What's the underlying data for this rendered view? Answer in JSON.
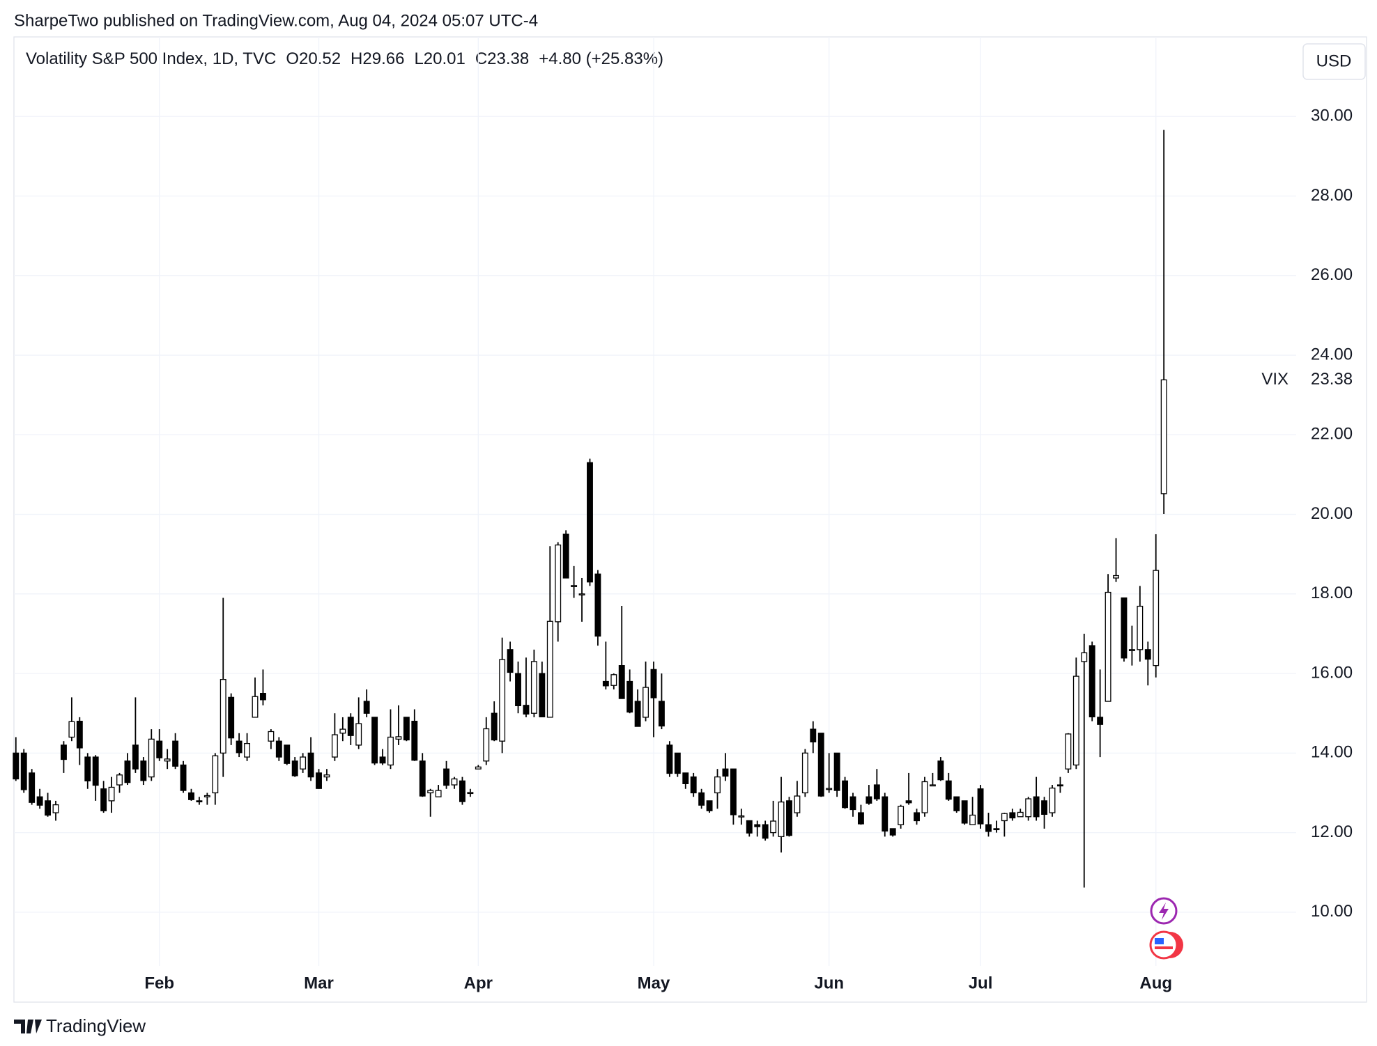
{
  "header": {
    "title": "SharpeTwo published on TradingView.com, Aug 04, 2024 05:07 UTC-4"
  },
  "footer": {
    "brand": "TradingView"
  },
  "chart_data": {
    "type": "candlestick",
    "symbol": "Volatility S&P 500 Index, 1D, TVC",
    "ohlc_labels": [
      "O20.52",
      "H29.66",
      "L20.01",
      "C23.38"
    ],
    "change": "+4.80 (+25.83%)",
    "currency": "USD",
    "ylim": [
      8.65,
      32.0
    ],
    "yticks": [
      {
        "value": 10,
        "label": "10.00"
      },
      {
        "value": 12,
        "label": "12.00"
      },
      {
        "value": 14,
        "label": "14.00"
      },
      {
        "value": 16,
        "label": "16.00"
      },
      {
        "value": 18,
        "label": "18.00"
      },
      {
        "value": 20,
        "label": "20.00"
      },
      {
        "value": 22,
        "label": "22.00"
      },
      {
        "value": 24,
        "label": "24.00"
      },
      {
        "value": 26,
        "label": "26.00"
      },
      {
        "value": 28,
        "label": "28.00"
      },
      {
        "value": 30,
        "label": "30.00"
      }
    ],
    "grid": true,
    "up_color": "#ffffff",
    "down_color": "#000000",
    "border_color": "#000000",
    "categories": [
      null,
      null,
      null,
      null,
      null,
      null,
      null,
      null,
      null,
      null,
      null,
      null,
      null,
      null,
      null,
      null,
      null,
      null,
      "Feb",
      null,
      null,
      null,
      null,
      null,
      null,
      null,
      null,
      null,
      null,
      null,
      null,
      null,
      null,
      null,
      null,
      null,
      null,
      null,
      "Mar",
      null,
      null,
      null,
      null,
      null,
      null,
      null,
      null,
      null,
      null,
      null,
      null,
      null,
      null,
      null,
      null,
      null,
      null,
      null,
      "Apr",
      null,
      null,
      null,
      null,
      null,
      null,
      null,
      null,
      null,
      null,
      null,
      null,
      null,
      null,
      null,
      null,
      null,
      null,
      null,
      null,
      null,
      "May",
      null,
      null,
      null,
      null,
      null,
      null,
      null,
      null,
      null,
      null,
      null,
      null,
      null,
      null,
      null,
      null,
      null,
      null,
      null,
      null,
      null,
      "Jun",
      null,
      null,
      null,
      null,
      null,
      null,
      null,
      null,
      null,
      null,
      null,
      null,
      null,
      null,
      null,
      null,
      null,
      null,
      "Jul",
      null,
      null,
      null,
      null,
      null,
      null,
      null,
      null,
      null,
      null,
      null,
      null,
      null,
      null,
      null,
      null,
      null,
      null,
      null,
      null,
      null,
      "Aug",
      null
    ],
    "series": [
      {
        "name": "VIX",
        "last_value_label": "23.38",
        "open": [
          14.0,
          14.0,
          13.5,
          12.9,
          12.8,
          12.5,
          14.2,
          14.4,
          14.8,
          13.9,
          13.9,
          13.1,
          12.8,
          13.2,
          13.8,
          14.2,
          13.8,
          13.4,
          14.3,
          13.8,
          14.3,
          13.7,
          13.0,
          12.8,
          12.9,
          13.0,
          14.0,
          15.4,
          14.3,
          13.9,
          14.9,
          15.5,
          14.3,
          14.3,
          14.2,
          13.8,
          13.6,
          14.0,
          13.5,
          13.4,
          13.9,
          14.5,
          14.9,
          14.2,
          15.3,
          14.9,
          13.9,
          13.7,
          14.35,
          14.9,
          14.8,
          13.8,
          13.0,
          12.9,
          13.6,
          13.2,
          13.3,
          13.0,
          13.6,
          13.8,
          15.0,
          14.3,
          16.6,
          16.0,
          15.2,
          15.0,
          16.0,
          14.9,
          17.3,
          19.5,
          18.2,
          18.0,
          21.3,
          18.5,
          15.8,
          15.7,
          16.2,
          15.8,
          15.3,
          14.9,
          16.1,
          15.3,
          14.2,
          14.0,
          13.5,
          13.4,
          13.0,
          12.8,
          13.0,
          13.6,
          13.6,
          12.4,
          12.3,
          12.2,
          12.2,
          12.0,
          11.9,
          12.8,
          12.5,
          13.0,
          14.6,
          14.5,
          13.1,
          14.0,
          13.3,
          12.9,
          12.5,
          12.9,
          13.2,
          12.9,
          12.1,
          12.2,
          12.8,
          12.5,
          12.5,
          13.2,
          13.8,
          13.3,
          12.9,
          12.8,
          12.2,
          13.1,
          12.2,
          12.1,
          12.3,
          12.5,
          12.4,
          12.4,
          12.9,
          12.8,
          12.5,
          13.2,
          13.6,
          13.7,
          16.3,
          16.7,
          14.9,
          15.3,
          18.4,
          17.9,
          16.6,
          16.6,
          16.6,
          16.2,
          20.52
        ],
        "high": [
          14.4,
          14.1,
          13.6,
          13.1,
          13.0,
          12.8,
          14.3,
          15.4,
          14.9,
          14.0,
          13.95,
          13.3,
          13.4,
          13.5,
          14.0,
          15.4,
          13.9,
          14.6,
          14.6,
          14.1,
          14.5,
          13.8,
          13.1,
          12.9,
          13.0,
          14.0,
          17.9,
          15.5,
          14.5,
          14.5,
          15.9,
          16.1,
          14.6,
          14.4,
          14.2,
          13.9,
          14.0,
          14.4,
          13.6,
          13.6,
          15.0,
          14.9,
          15.0,
          15.4,
          15.6,
          14.9,
          14.1,
          15.1,
          15.2,
          14.9,
          15.1,
          14.0,
          13.1,
          13.2,
          13.8,
          13.4,
          13.4,
          13.1,
          13.7,
          14.9,
          15.3,
          16.9,
          16.8,
          16.3,
          16.4,
          16.6,
          16.3,
          19.2,
          19.3,
          19.6,
          18.7,
          18.4,
          21.4,
          18.6,
          16.8,
          16.0,
          17.7,
          16.1,
          15.6,
          16.3,
          16.3,
          16.0,
          14.3,
          14.0,
          13.5,
          13.5,
          13.1,
          12.8,
          13.6,
          14.0,
          13.6,
          12.6,
          12.3,
          12.3,
          12.3,
          12.8,
          13.4,
          12.9,
          13.3,
          14.1,
          14.8,
          14.5,
          14.0,
          14.0,
          13.4,
          13.0,
          12.7,
          13.2,
          13.6,
          13.0,
          12.1,
          12.7,
          13.5,
          12.6,
          13.4,
          13.5,
          13.9,
          13.5,
          12.9,
          12.8,
          12.9,
          13.2,
          12.5,
          12.3,
          12.5,
          12.6,
          12.6,
          12.9,
          13.4,
          12.9,
          13.2,
          13.4,
          14.5,
          16.4,
          17.0,
          16.8,
          16.1,
          18.5,
          19.4,
          17.9,
          17.2,
          18.2,
          16.8,
          19.5,
          29.66
        ],
        "low": [
          13.3,
          13.0,
          12.7,
          12.6,
          12.4,
          12.3,
          13.5,
          14.3,
          13.7,
          13.1,
          12.8,
          12.5,
          12.5,
          13.0,
          13.2,
          13.5,
          13.2,
          13.3,
          13.8,
          13.6,
          13.6,
          13.0,
          12.8,
          12.7,
          12.7,
          12.7,
          13.4,
          14.2,
          13.9,
          13.8,
          14.9,
          15.2,
          14.1,
          13.8,
          13.7,
          13.4,
          13.5,
          13.3,
          13.1,
          13.3,
          13.8,
          14.3,
          14.2,
          14.1,
          14.9,
          13.7,
          13.7,
          13.6,
          14.2,
          14.3,
          13.8,
          12.9,
          12.4,
          12.9,
          13.1,
          13.1,
          12.7,
          12.9,
          13.6,
          13.7,
          14.3,
          14.0,
          15.8,
          15.0,
          14.9,
          14.9,
          14.9,
          14.9,
          16.8,
          18.4,
          17.9,
          17.3,
          18.2,
          16.7,
          15.6,
          15.6,
          15.4,
          15.0,
          14.7,
          14.8,
          14.4,
          14.6,
          13.4,
          13.4,
          13.1,
          12.9,
          12.6,
          12.5,
          12.6,
          13.3,
          12.2,
          12.2,
          11.9,
          11.9,
          11.8,
          11.9,
          11.5,
          11.9,
          12.4,
          12.9,
          14.0,
          12.9,
          13.0,
          12.9,
          12.6,
          12.4,
          12.2,
          12.7,
          12.8,
          11.9,
          11.9,
          12.1,
          12.7,
          12.2,
          12.4,
          13.2,
          13.3,
          12.8,
          12.5,
          12.2,
          12.2,
          12.1,
          11.9,
          12.0,
          11.9,
          12.3,
          12.4,
          12.3,
          12.3,
          12.1,
          12.4,
          13.0,
          13.5,
          13.6,
          10.62,
          14.8,
          13.9,
          15.3,
          18.3,
          16.3,
          16.2,
          16.3,
          15.7,
          15.9,
          20.01
        ],
        "close": [
          13.35,
          13.08,
          12.76,
          12.69,
          12.44,
          12.7,
          13.84,
          14.79,
          14.13,
          13.3,
          13.19,
          12.55,
          13.14,
          13.45,
          13.26,
          13.6,
          13.31,
          14.35,
          13.88,
          13.85,
          13.67,
          13.06,
          12.83,
          12.79,
          12.93,
          13.93,
          15.85,
          14.38,
          14.01,
          14.24,
          15.42,
          15.34,
          14.54,
          13.9,
          13.74,
          13.43,
          13.9,
          13.4,
          13.11,
          13.45,
          14.46,
          14.6,
          14.44,
          14.74,
          15.0,
          13.75,
          13.75,
          14.4,
          14.41,
          14.33,
          13.82,
          12.92,
          13.06,
          13.06,
          13.19,
          13.35,
          12.78,
          13.01,
          13.65,
          14.61,
          14.33,
          16.35,
          16.03,
          15.19,
          14.98,
          16.3,
          14.91,
          17.31,
          19.23,
          18.4,
          18.21,
          18.0,
          18.3,
          16.94,
          15.69,
          15.97,
          15.37,
          15.03,
          14.67,
          15.65,
          15.39,
          14.68,
          13.49,
          13.49,
          13.23,
          13.0,
          12.69,
          12.55,
          13.4,
          13.42,
          12.45,
          12.42,
          11.99,
          12.15,
          11.86,
          12.29,
          12.77,
          11.93,
          12.92,
          14.0,
          14.28,
          12.92,
          13.11,
          13.06,
          12.63,
          12.58,
          12.22,
          12.74,
          12.85,
          12.04,
          11.94,
          12.66,
          12.75,
          12.3,
          13.28,
          13.2,
          13.33,
          12.84,
          12.55,
          12.24,
          12.44,
          12.22,
          12.03,
          12.09,
          12.48,
          12.37,
          12.51,
          12.85,
          12.4,
          12.46,
          13.12,
          13.19,
          14.48,
          15.93,
          16.52,
          14.91,
          14.72,
          18.04,
          18.46,
          16.39,
          16.6,
          17.69,
          16.36,
          18.59,
          23.38
        ]
      }
    ]
  }
}
